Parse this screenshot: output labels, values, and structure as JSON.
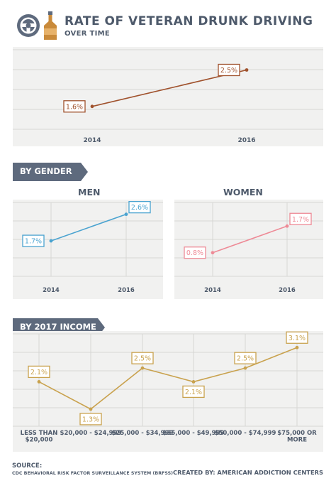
{
  "header": {
    "title": "RATE OF VETERAN DRUNK DRIVING",
    "subtitle": "OVER TIME",
    "icons": [
      "steering-wheel-icon",
      "liquor-bottle-icon"
    ]
  },
  "sections": {
    "gender_label": "BY GENDER",
    "men_label": "MEN",
    "women_label": "WOMEN",
    "income_label": "BY 2017 INCOME"
  },
  "footer": {
    "source_label": "SOURCE:",
    "source_text": "CDC BEHAVIORAL RISK FACTOR SURVEILLANCE SYSTEM (BRFSS)",
    "credit": "CREATED BY: AMERICAN ADDICTION CENTERS"
  },
  "colors": {
    "text": "#4e5a6b",
    "overall": "#a0522d",
    "men": "#4aa3d0",
    "women": "#ee8a96",
    "income": "#c9a24e",
    "ribbon": "#5e6a7d"
  },
  "chart_data": [
    {
      "id": "overall",
      "type": "line",
      "categories": [
        "2014",
        "2016"
      ],
      "values": [
        1.6,
        2.5
      ],
      "labels": [
        "1.6%",
        "2.5%"
      ],
      "ylim": [
        1.0,
        3.0
      ],
      "color": "#a0522d",
      "grid": true
    },
    {
      "id": "men",
      "type": "line",
      "title": "MEN",
      "categories": [
        "2014",
        "2016"
      ],
      "values": [
        1.7,
        2.6
      ],
      "labels": [
        "1.7%",
        "2.6%"
      ],
      "ylim": [
        0.5,
        3.0
      ],
      "color": "#4aa3d0",
      "grid": true
    },
    {
      "id": "women",
      "type": "line",
      "title": "WOMEN",
      "categories": [
        "2014",
        "2016"
      ],
      "values": [
        0.8,
        1.7
      ],
      "labels": [
        "0.8%",
        "1.7%"
      ],
      "ylim": [
        0.0,
        2.5
      ],
      "color": "#ee8a96",
      "grid": true
    },
    {
      "id": "income",
      "type": "line",
      "title": "BY 2017 INCOME",
      "categories": [
        "LESS THAN\n$20,000",
        "$20,000 - $24,999",
        "$25,000 - $34,999",
        "$35,000 - $49,999",
        "$50,000 - $74,999",
        "$75,000 OR\nMORE"
      ],
      "values": [
        2.1,
        1.3,
        2.5,
        2.1,
        2.5,
        3.1
      ],
      "labels": [
        "2.1%",
        "1.3%",
        "2.5%",
        "2.1%",
        "2.5%",
        "3.1%"
      ],
      "ylim": [
        0.8,
        3.5
      ],
      "color": "#c9a24e",
      "grid": true
    }
  ]
}
